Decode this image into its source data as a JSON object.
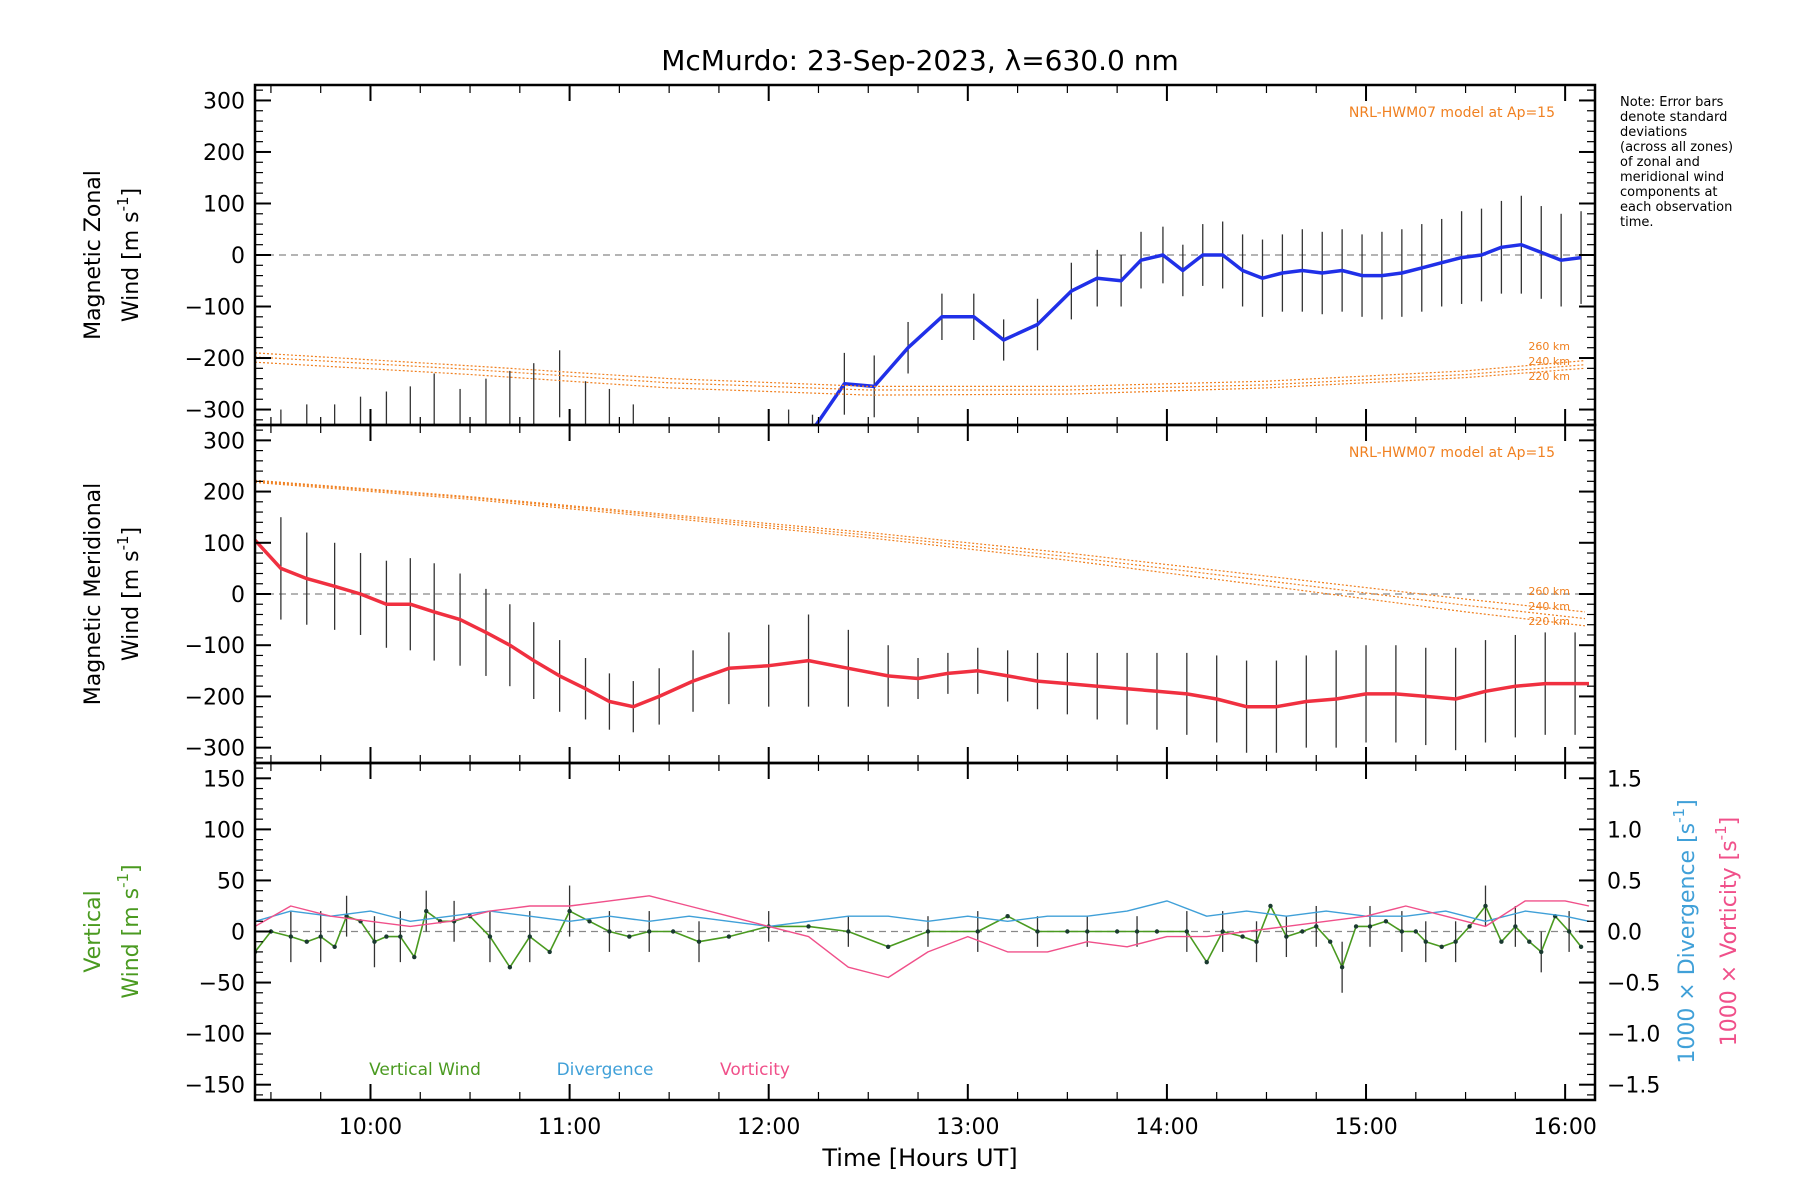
{
  "title": "McMurdo: 23-Sep-2023, λ=630.0 nm",
  "note": [
    "Note: Error bars",
    "denote standard",
    "deviations",
    "(across all zones)",
    "of zonal and",
    "meridional wind",
    "components at",
    "each observation",
    "time."
  ],
  "colors": {
    "zonal": "#2030e8",
    "meridional": "#f03040",
    "model": "#f08020",
    "vertical": "#4a9a20",
    "divergence": "#40a0d8",
    "vorticity": "#f0508a",
    "errorbar": "#333333",
    "zero_line": "#888888"
  },
  "chart_data": [
    {
      "id": "zonal",
      "type": "line",
      "ylabel": [
        "Magnetic Zonal",
        "Wind [m s",
        "-1",
        "]"
      ],
      "ylim": [
        -330,
        330
      ],
      "yticks": [
        300,
        200,
        100,
        0,
        -100,
        -200,
        -300
      ],
      "model_label": "NRL-HWM07 model at Ap=15",
      "altitude_labels": [
        "260 km",
        "240 km",
        "220 km"
      ],
      "series": [
        {
          "name": "Zonal Wind",
          "x": [
            12.22,
            12.38,
            12.53,
            12.7,
            12.87,
            13.03,
            13.18,
            13.35,
            13.52,
            13.65,
            13.77,
            13.87,
            13.98,
            14.08,
            14.18,
            14.28,
            14.38,
            14.48,
            14.58,
            14.68,
            14.78,
            14.88,
            14.98,
            15.08,
            15.18,
            15.28,
            15.38,
            15.48,
            15.58,
            15.68,
            15.78,
            15.88,
            15.98,
            16.08
          ],
          "y": [
            -340,
            -250,
            -255,
            -180,
            -120,
            -120,
            -165,
            -135,
            -70,
            -45,
            -50,
            -10,
            0,
            -30,
            0,
            0,
            -30,
            -45,
            -35,
            -30,
            -35,
            -30,
            -40,
            -40,
            -35,
            -25,
            -15,
            -5,
            0,
            15,
            20,
            5,
            -10,
            -5
          ]
        },
        {
          "name": "Model 260 km",
          "x": [
            9.42,
            10.5,
            11.5,
            12.5,
            13.5,
            14.5,
            15.5,
            16.1
          ],
          "y": [
            -190,
            -215,
            -240,
            -255,
            -255,
            -245,
            -225,
            -205
          ]
        },
        {
          "name": "Model 240 km",
          "x": [
            9.42,
            10.5,
            11.5,
            12.5,
            13.5,
            14.5,
            15.5,
            16.1
          ],
          "y": [
            -198,
            -222,
            -248,
            -262,
            -262,
            -252,
            -232,
            -213
          ]
        },
        {
          "name": "Model 220 km",
          "x": [
            9.42,
            10.5,
            11.5,
            12.5,
            13.5,
            14.5,
            15.5,
            16.1
          ],
          "y": [
            -208,
            -232,
            -258,
            -272,
            -270,
            -258,
            -238,
            -220
          ]
        }
      ],
      "error_bars": {
        "x": [
          9.42,
          9.55,
          9.68,
          9.82,
          9.95,
          10.08,
          10.2,
          10.32,
          10.45,
          10.58,
          10.7,
          10.82,
          10.95,
          11.08,
          11.2,
          11.32,
          12.0,
          12.1,
          12.22,
          12.38,
          12.53,
          12.7,
          12.87,
          13.03,
          13.18,
          13.35,
          13.52,
          13.65,
          13.77,
          13.87,
          13.98,
          14.08,
          14.18,
          14.28,
          14.38,
          14.48,
          14.58,
          14.68,
          14.78,
          14.88,
          14.98,
          15.08,
          15.18,
          15.28,
          15.38,
          15.48,
          15.58,
          15.68,
          15.78,
          15.88,
          15.98,
          16.08
        ],
        "y": [
          -330,
          -320,
          -315,
          -320,
          -310,
          -305,
          -300,
          -280,
          -300,
          -290,
          -280,
          -270,
          -250,
          -290,
          -300,
          -320,
          -330,
          -325,
          -340,
          -250,
          -255,
          -180,
          -120,
          -120,
          -165,
          -135,
          -70,
          -45,
          -50,
          -10,
          0,
          -30,
          0,
          0,
          -30,
          -45,
          -35,
          -30,
          -35,
          -30,
          -40,
          -40,
          -35,
          -25,
          -15,
          -5,
          0,
          15,
          20,
          5,
          -10,
          -5
        ],
        "err": [
          15,
          20,
          25,
          30,
          35,
          40,
          45,
          50,
          40,
          50,
          55,
          60,
          65,
          45,
          40,
          30,
          20,
          25,
          30,
          60,
          60,
          50,
          45,
          45,
          40,
          50,
          55,
          55,
          50,
          55,
          55,
          50,
          60,
          65,
          70,
          75,
          75,
          80,
          80,
          80,
          80,
          85,
          85,
          85,
          85,
          90,
          90,
          90,
          95,
          90,
          90,
          90
        ]
      }
    },
    {
      "id": "meridional",
      "type": "line",
      "ylabel": [
        "Magnetic Meridional",
        "Wind [m s",
        "-1",
        "]"
      ],
      "ylim": [
        -330,
        330
      ],
      "yticks": [
        300,
        200,
        100,
        0,
        -100,
        -200,
        -300
      ],
      "model_label": "NRL-HWM07 model at Ap=15",
      "altitude_labels": [
        "260 km",
        "240 km",
        "220 km"
      ],
      "series": [
        {
          "name": "Meridional Wind",
          "x": [
            9.42,
            9.55,
            9.68,
            9.82,
            9.95,
            10.08,
            10.2,
            10.32,
            10.45,
            10.58,
            10.7,
            10.82,
            10.95,
            11.08,
            11.2,
            11.32,
            11.45,
            11.62,
            11.8,
            12.0,
            12.2,
            12.4,
            12.6,
            12.75,
            12.9,
            13.05,
            13.2,
            13.35,
            13.5,
            13.65,
            13.8,
            13.95,
            14.1,
            14.25,
            14.4,
            14.55,
            14.7,
            14.85,
            15.0,
            15.15,
            15.3,
            15.45,
            15.6,
            15.75,
            15.9,
            16.05,
            16.12
          ],
          "y": [
            105,
            50,
            30,
            15,
            0,
            -20,
            -20,
            -35,
            -50,
            -75,
            -100,
            -130,
            -160,
            -185,
            -210,
            -220,
            -200,
            -170,
            -145,
            -140,
            -130,
            -145,
            -160,
            -165,
            -155,
            -150,
            -160,
            -170,
            -175,
            -180,
            -185,
            -190,
            -195,
            -205,
            -220,
            -220,
            -210,
            -205,
            -195,
            -195,
            -200,
            -205,
            -190,
            -180,
            -175,
            -175,
            -175
          ]
        },
        {
          "name": "Model 260 km",
          "x": [
            9.42,
            10.5,
            11.5,
            12.5,
            13.5,
            14.5,
            15.5,
            16.1
          ],
          "y": [
            222,
            190,
            155,
            120,
            80,
            35,
            -10,
            -35
          ]
        },
        {
          "name": "Model 240 km",
          "x": [
            9.42,
            10.5,
            11.5,
            12.5,
            13.5,
            14.5,
            15.5,
            16.1
          ],
          "y": [
            220,
            188,
            152,
            115,
            73,
            26,
            -22,
            -48
          ]
        },
        {
          "name": "Model 220 km",
          "x": [
            9.42,
            10.5,
            11.5,
            12.5,
            13.5,
            14.5,
            15.5,
            16.1
          ],
          "y": [
            218,
            185,
            148,
            110,
            66,
            16,
            -35,
            -62
          ]
        }
      ],
      "error_bars": {
        "x": [
          9.42,
          9.55,
          9.68,
          9.82,
          9.95,
          10.08,
          10.2,
          10.32,
          10.45,
          10.58,
          10.7,
          10.82,
          10.95,
          11.08,
          11.2,
          11.32,
          11.45,
          11.62,
          11.8,
          12.0,
          12.2,
          12.4,
          12.6,
          12.75,
          12.9,
          13.05,
          13.2,
          13.35,
          13.5,
          13.65,
          13.8,
          13.95,
          14.1,
          14.25,
          14.4,
          14.55,
          14.7,
          14.85,
          15.0,
          15.15,
          15.3,
          15.45,
          15.6,
          15.75,
          15.9,
          16.05
        ],
        "y": [
          105,
          50,
          30,
          15,
          0,
          -20,
          -20,
          -35,
          -50,
          -75,
          -100,
          -130,
          -160,
          -185,
          -210,
          -220,
          -200,
          -170,
          -145,
          -140,
          -130,
          -145,
          -160,
          -165,
          -155,
          -150,
          -160,
          -170,
          -175,
          -180,
          -185,
          -190,
          -195,
          -205,
          -220,
          -220,
          -210,
          -205,
          -195,
          -195,
          -200,
          -205,
          -190,
          -180,
          -175,
          -175
        ],
        "err": [
          80,
          100,
          90,
          85,
          80,
          85,
          90,
          95,
          90,
          85,
          80,
          75,
          70,
          60,
          55,
          50,
          55,
          60,
          70,
          80,
          90,
          75,
          60,
          40,
          40,
          45,
          50,
          55,
          60,
          65,
          70,
          75,
          80,
          85,
          90,
          90,
          90,
          95,
          95,
          95,
          95,
          100,
          100,
          100,
          100,
          100
        ]
      }
    },
    {
      "id": "vertical",
      "type": "line",
      "ylabel_left": [
        "Vertical",
        "Wind [m s",
        "-1",
        "]"
      ],
      "ylim": [
        -165,
        165
      ],
      "yticks": [
        150,
        100,
        50,
        0,
        -50,
        -100,
        -150
      ],
      "y2_divergence_label": [
        "1000 × Divergence [s",
        "-1",
        "]"
      ],
      "y2_vorticity_label": [
        "1000 × Vorticity [s",
        "-1",
        "]"
      ],
      "y2lim": [
        -1.65,
        1.65
      ],
      "y2ticks": [
        1.5,
        1.0,
        0.5,
        0.0,
        -0.5,
        -1.0,
        -1.5
      ],
      "y2ticklabels": [
        "1.5",
        "1.0",
        "0.5",
        "0.0",
        "−0.5",
        "−1.0",
        "−1.5"
      ],
      "xlabel": "Time [Hours UT]",
      "xticks": [
        10,
        11,
        12,
        13,
        14,
        15,
        16
      ],
      "xticklabels": [
        "10:00",
        "11:00",
        "12:00",
        "13:00",
        "14:00",
        "15:00",
        "16:00"
      ],
      "xlim": [
        9.42,
        16.15
      ],
      "legend": [
        "Vertical Wind",
        "Divergence",
        "Vorticity"
      ],
      "series": [
        {
          "name": "Vertical Wind",
          "x": [
            9.42,
            9.5,
            9.6,
            9.68,
            9.75,
            9.82,
            9.88,
            9.95,
            10.02,
            10.08,
            10.15,
            10.22,
            10.28,
            10.35,
            10.42,
            10.5,
            10.6,
            10.7,
            10.8,
            10.9,
            11.0,
            11.1,
            11.2,
            11.3,
            11.4,
            11.52,
            11.65,
            11.8,
            12.0,
            12.2,
            12.4,
            12.6,
            12.8,
            13.05,
            13.2,
            13.35,
            13.5,
            13.6,
            13.75,
            13.85,
            13.95,
            14.1,
            14.2,
            14.28,
            14.38,
            14.45,
            14.52,
            14.6,
            14.68,
            14.75,
            14.82,
            14.88,
            14.95,
            15.02,
            15.1,
            15.18,
            15.25,
            15.3,
            15.38,
            15.45,
            15.52,
            15.6,
            15.68,
            15.75,
            15.82,
            15.88,
            15.95,
            16.02,
            16.08
          ],
          "y": [
            -20,
            0,
            -5,
            -10,
            -5,
            -15,
            15,
            10,
            -10,
            -5,
            -5,
            -25,
            20,
            10,
            10,
            15,
            -5,
            -35,
            -5,
            -20,
            20,
            10,
            0,
            -5,
            0,
            0,
            -10,
            -5,
            5,
            5,
            0,
            -15,
            0,
            0,
            15,
            0,
            0,
            0,
            0,
            0,
            0,
            0,
            -30,
            0,
            -5,
            -10,
            25,
            -5,
            0,
            5,
            -10,
            -35,
            5,
            5,
            10,
            0,
            0,
            -10,
            -15,
            -10,
            5,
            25,
            -10,
            5,
            -10,
            -20,
            15,
            0,
            -15
          ]
        },
        {
          "name": "Divergence",
          "x": [
            9.42,
            9.6,
            9.8,
            10.0,
            10.2,
            10.4,
            10.6,
            10.8,
            11.0,
            11.2,
            11.4,
            11.6,
            11.8,
            12.0,
            12.2,
            12.4,
            12.6,
            12.8,
            13.0,
            13.2,
            13.4,
            13.6,
            13.8,
            14.0,
            14.2,
            14.4,
            14.6,
            14.8,
            15.0,
            15.2,
            15.4,
            15.6,
            15.8,
            16.0,
            16.12
          ],
          "y": [
            0.1,
            0.2,
            0.15,
            0.2,
            0.1,
            0.15,
            0.2,
            0.15,
            0.1,
            0.15,
            0.1,
            0.15,
            0.1,
            0.05,
            0.1,
            0.15,
            0.15,
            0.1,
            0.15,
            0.1,
            0.15,
            0.15,
            0.2,
            0.3,
            0.15,
            0.2,
            0.15,
            0.2,
            0.15,
            0.15,
            0.2,
            0.1,
            0.2,
            0.15,
            0.1
          ]
        },
        {
          "name": "Vorticity",
          "x": [
            9.42,
            9.6,
            9.8,
            10.0,
            10.2,
            10.4,
            10.6,
            10.8,
            11.0,
            11.2,
            11.4,
            11.6,
            11.8,
            12.0,
            12.2,
            12.4,
            12.6,
            12.8,
            13.0,
            13.2,
            13.4,
            13.6,
            13.8,
            14.0,
            14.2,
            14.4,
            14.6,
            14.8,
            15.0,
            15.2,
            15.4,
            15.6,
            15.8,
            16.0,
            16.12
          ],
          "y": [
            0.05,
            0.25,
            0.15,
            0.1,
            0.05,
            0.1,
            0.2,
            0.25,
            0.25,
            0.3,
            0.35,
            0.25,
            0.15,
            0.05,
            -0.05,
            -0.35,
            -0.45,
            -0.2,
            -0.05,
            -0.2,
            -0.2,
            -0.1,
            -0.15,
            -0.05,
            -0.05,
            0.0,
            0.05,
            0.1,
            0.15,
            0.25,
            0.15,
            0.05,
            0.3,
            0.3,
            0.25
          ]
        }
      ],
      "error_bars": {
        "x": [
          9.42,
          9.6,
          9.75,
          9.88,
          10.02,
          10.15,
          10.28,
          10.42,
          10.6,
          10.8,
          11.0,
          11.2,
          11.4,
          11.65,
          12.0,
          12.4,
          12.8,
          13.05,
          13.35,
          13.6,
          13.85,
          14.1,
          14.28,
          14.45,
          14.6,
          14.75,
          14.88,
          15.02,
          15.18,
          15.3,
          15.45,
          15.6,
          15.75,
          15.88,
          16.02
        ],
        "y": [
          -20,
          -5,
          -5,
          15,
          -10,
          -5,
          20,
          10,
          -5,
          -5,
          20,
          0,
          0,
          -10,
          5,
          0,
          0,
          0,
          0,
          0,
          0,
          0,
          0,
          -10,
          -5,
          5,
          -35,
          5,
          0,
          -10,
          -10,
          25,
          5,
          -20,
          0
        ],
        "err": [
          25,
          25,
          25,
          20,
          25,
          25,
          20,
          20,
          25,
          25,
          25,
          20,
          20,
          20,
          15,
          15,
          15,
          20,
          15,
          15,
          15,
          20,
          20,
          20,
          20,
          20,
          25,
          20,
          20,
          20,
          20,
          20,
          20,
          20,
          20
        ]
      }
    }
  ]
}
